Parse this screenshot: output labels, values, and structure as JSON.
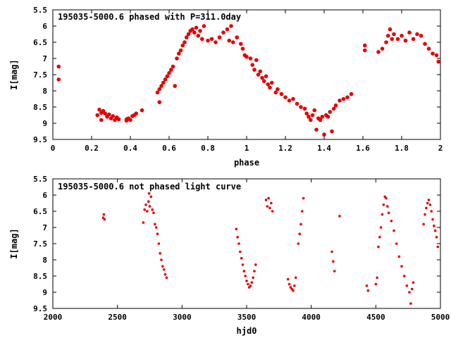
{
  "chart_data": [
    {
      "type": "scatter",
      "title": "195035-5000.6 phased with P=311.0day",
      "xlabel": "phase",
      "ylabel": "I[mag]",
      "xlim": [
        0,
        2
      ],
      "ylim": [
        5.5,
        9.5
      ],
      "y_inverted": true,
      "xticks": [
        0,
        0.2,
        0.4,
        0.6,
        0.8,
        1,
        1.2,
        1.4,
        1.6,
        1.8,
        2
      ],
      "xtick_labels": [
        "0",
        "0.2",
        "0.4",
        "0.6",
        "0.8",
        "1",
        "1.2",
        "1.4",
        "1.6",
        "1.8",
        "2"
      ],
      "yticks": [
        5.5,
        6,
        6.5,
        7,
        7.5,
        8,
        8.5,
        9,
        9.5
      ],
      "ytick_labels": [
        "5.5",
        "6",
        "6.5",
        "7",
        "7.5",
        "8",
        "8.5",
        "9",
        "9.5"
      ],
      "grid": false,
      "marker_color": "#e60000",
      "points": [
        [
          0.03,
          7.25
        ],
        [
          0.03,
          7.65
        ],
        [
          0.23,
          8.75
        ],
        [
          0.24,
          8.58
        ],
        [
          0.25,
          8.68
        ],
        [
          0.25,
          8.9
        ],
        [
          0.26,
          8.62
        ],
        [
          0.27,
          8.7
        ],
        [
          0.28,
          8.8
        ],
        [
          0.29,
          8.73
        ],
        [
          0.3,
          8.85
        ],
        [
          0.31,
          8.78
        ],
        [
          0.32,
          8.9
        ],
        [
          0.33,
          8.82
        ],
        [
          0.34,
          8.88
        ],
        [
          0.38,
          8.88
        ],
        [
          0.38,
          8.92
        ],
        [
          0.39,
          8.85
        ],
        [
          0.4,
          8.9
        ],
        [
          0.41,
          8.78
        ],
        [
          0.42,
          8.75
        ],
        [
          0.43,
          8.7
        ],
        [
          0.46,
          8.6
        ],
        [
          0.54,
          8.05
        ],
        [
          0.55,
          7.95
        ],
        [
          0.55,
          8.35
        ],
        [
          0.56,
          7.85
        ],
        [
          0.57,
          7.75
        ],
        [
          0.58,
          7.65
        ],
        [
          0.59,
          7.55
        ],
        [
          0.6,
          7.45
        ],
        [
          0.61,
          7.35
        ],
        [
          0.62,
          7.25
        ],
        [
          0.63,
          7.85
        ],
        [
          0.64,
          7.0
        ],
        [
          0.65,
          6.85
        ],
        [
          0.66,
          6.75
        ],
        [
          0.67,
          6.6
        ],
        [
          0.68,
          6.5
        ],
        [
          0.69,
          6.35
        ],
        [
          0.7,
          6.25
        ],
        [
          0.71,
          6.15
        ],
        [
          0.72,
          6.1
        ],
        [
          0.73,
          6.2
        ],
        [
          0.74,
          6.05
        ],
        [
          0.75,
          6.3
        ],
        [
          0.76,
          6.15
        ],
        [
          0.77,
          6.4
        ],
        [
          0.78,
          6.0
        ],
        [
          0.8,
          6.45
        ],
        [
          0.82,
          6.4
        ],
        [
          0.84,
          6.5
        ],
        [
          0.86,
          6.35
        ],
        [
          0.88,
          6.2
        ],
        [
          0.9,
          6.1
        ],
        [
          0.91,
          6.45
        ],
        [
          0.92,
          6.0
        ],
        [
          0.93,
          6.5
        ],
        [
          0.95,
          6.35
        ],
        [
          0.97,
          6.55
        ],
        [
          0.98,
          6.7
        ],
        [
          0.99,
          6.9
        ],
        [
          1.0,
          6.95
        ],
        [
          1.02,
          7.0
        ],
        [
          1.03,
          7.2
        ],
        [
          1.04,
          7.35
        ],
        [
          1.05,
          7.05
        ],
        [
          1.06,
          7.5
        ],
        [
          1.07,
          7.4
        ],
        [
          1.08,
          7.6
        ],
        [
          1.09,
          7.7
        ],
        [
          1.1,
          7.55
        ],
        [
          1.11,
          7.8
        ],
        [
          1.12,
          7.9
        ],
        [
          1.13,
          7.75
        ],
        [
          1.15,
          8.05
        ],
        [
          1.16,
          7.95
        ],
        [
          1.18,
          8.1
        ],
        [
          1.2,
          8.2
        ],
        [
          1.22,
          8.3
        ],
        [
          1.24,
          8.25
        ],
        [
          1.26,
          8.4
        ],
        [
          1.28,
          8.5
        ],
        [
          1.3,
          8.55
        ],
        [
          1.31,
          8.7
        ],
        [
          1.32,
          8.8
        ],
        [
          1.33,
          8.9
        ],
        [
          1.34,
          8.75
        ],
        [
          1.35,
          8.6
        ],
        [
          1.36,
          9.2
        ],
        [
          1.37,
          8.85
        ],
        [
          1.38,
          8.9
        ],
        [
          1.39,
          8.8
        ],
        [
          1.4,
          9.35
        ],
        [
          1.41,
          8.75
        ],
        [
          1.42,
          8.8
        ],
        [
          1.43,
          8.65
        ],
        [
          1.44,
          9.25
        ],
        [
          1.45,
          8.55
        ],
        [
          1.46,
          8.45
        ],
        [
          1.48,
          8.3
        ],
        [
          1.5,
          8.25
        ],
        [
          1.52,
          8.2
        ],
        [
          1.54,
          8.1
        ],
        [
          1.61,
          6.6
        ],
        [
          1.61,
          6.75
        ],
        [
          1.68,
          6.8
        ],
        [
          1.7,
          6.7
        ],
        [
          1.72,
          6.5
        ],
        [
          1.73,
          6.3
        ],
        [
          1.74,
          6.1
        ],
        [
          1.75,
          6.4
        ],
        [
          1.76,
          6.25
        ],
        [
          1.78,
          6.4
        ],
        [
          1.8,
          6.3
        ],
        [
          1.82,
          6.45
        ],
        [
          1.84,
          6.2
        ],
        [
          1.86,
          6.4
        ],
        [
          1.88,
          6.25
        ],
        [
          1.9,
          6.3
        ],
        [
          1.92,
          6.55
        ],
        [
          1.94,
          6.7
        ],
        [
          1.96,
          6.85
        ],
        [
          1.98,
          6.9
        ],
        [
          1.99,
          7.1
        ]
      ]
    },
    {
      "type": "scatter",
      "title": "195035-5000.6 not phased light curve",
      "xlabel": "hjd0",
      "ylabel": "I[mag]",
      "xlim": [
        2000,
        5000
      ],
      "ylim": [
        5.5,
        9.5
      ],
      "y_inverted": true,
      "xticks": [
        2000,
        2500,
        3000,
        3500,
        4000,
        4500,
        5000
      ],
      "xtick_labels": [
        "2000",
        "2500",
        "3000",
        "3500",
        "4000",
        "4500",
        "5000"
      ],
      "yticks": [
        5.5,
        6,
        6.5,
        7,
        7.5,
        8,
        8.5,
        9,
        9.5
      ],
      "ytick_labels": [
        "5.5",
        "6",
        "6.5",
        "7",
        "7.5",
        "8",
        "8.5",
        "9",
        "9.5"
      ],
      "grid": false,
      "marker_color": "#e60000",
      "points": [
        [
          2390,
          6.7
        ],
        [
          2395,
          6.6
        ],
        [
          2400,
          6.75
        ],
        [
          2700,
          6.85
        ],
        [
          2710,
          6.45
        ],
        [
          2720,
          6.3
        ],
        [
          2730,
          6.5
        ],
        [
          2740,
          6.2
        ],
        [
          2745,
          5.95
        ],
        [
          2750,
          6.35
        ],
        [
          2760,
          6.05
        ],
        [
          2770,
          6.45
        ],
        [
          2780,
          6.55
        ],
        [
          2790,
          6.9
        ],
        [
          2800,
          7.0
        ],
        [
          2810,
          7.2
        ],
        [
          2820,
          7.5
        ],
        [
          2830,
          7.8
        ],
        [
          2840,
          8.0
        ],
        [
          2850,
          8.2
        ],
        [
          2860,
          8.3
        ],
        [
          2870,
          8.45
        ],
        [
          2880,
          8.55
        ],
        [
          3420,
          7.05
        ],
        [
          3430,
          7.3
        ],
        [
          3440,
          7.5
        ],
        [
          3450,
          7.75
        ],
        [
          3460,
          7.95
        ],
        [
          3470,
          8.15
        ],
        [
          3480,
          8.35
        ],
        [
          3490,
          8.5
        ],
        [
          3500,
          8.65
        ],
        [
          3510,
          8.75
        ],
        [
          3520,
          8.85
        ],
        [
          3530,
          8.8
        ],
        [
          3540,
          8.7
        ],
        [
          3550,
          8.55
        ],
        [
          3560,
          8.35
        ],
        [
          3570,
          8.15
        ],
        [
          3650,
          6.15
        ],
        [
          3660,
          6.35
        ],
        [
          3670,
          6.1
        ],
        [
          3680,
          6.4
        ],
        [
          3690,
          6.25
        ],
        [
          3700,
          6.5
        ],
        [
          3820,
          8.6
        ],
        [
          3830,
          8.75
        ],
        [
          3840,
          8.85
        ],
        [
          3850,
          8.9
        ],
        [
          3860,
          8.95
        ],
        [
          3870,
          8.8
        ],
        [
          3880,
          8.55
        ],
        [
          3900,
          7.5
        ],
        [
          3910,
          7.2
        ],
        [
          3920,
          6.9
        ],
        [
          3930,
          6.5
        ],
        [
          3940,
          6.1
        ],
        [
          4160,
          7.75
        ],
        [
          4170,
          8.05
        ],
        [
          4180,
          8.35
        ],
        [
          4220,
          6.65
        ],
        [
          4430,
          8.8
        ],
        [
          4440,
          8.95
        ],
        [
          4500,
          8.75
        ],
        [
          4510,
          8.55
        ],
        [
          4520,
          7.6
        ],
        [
          4530,
          7.3
        ],
        [
          4540,
          7.0
        ],
        [
          4550,
          6.6
        ],
        [
          4560,
          6.3
        ],
        [
          4570,
          6.05
        ],
        [
          4580,
          6.1
        ],
        [
          4590,
          6.35
        ],
        [
          4600,
          6.55
        ],
        [
          4620,
          6.8
        ],
        [
          4640,
          7.1
        ],
        [
          4660,
          7.5
        ],
        [
          4680,
          7.9
        ],
        [
          4700,
          8.2
        ],
        [
          4720,
          8.5
        ],
        [
          4740,
          8.8
        ],
        [
          4760,
          9.0
        ],
        [
          4770,
          9.35
        ],
        [
          4780,
          8.9
        ],
        [
          4790,
          8.7
        ],
        [
          4870,
          6.9
        ],
        [
          4880,
          6.6
        ],
        [
          4890,
          6.4
        ],
        [
          4900,
          6.25
        ],
        [
          4910,
          6.15
        ],
        [
          4920,
          6.3
        ],
        [
          4930,
          6.5
        ],
        [
          4940,
          6.75
        ],
        [
          4950,
          6.95
        ],
        [
          4960,
          7.1
        ],
        [
          4970,
          7.3
        ],
        [
          4980,
          7.6
        ]
      ]
    }
  ]
}
